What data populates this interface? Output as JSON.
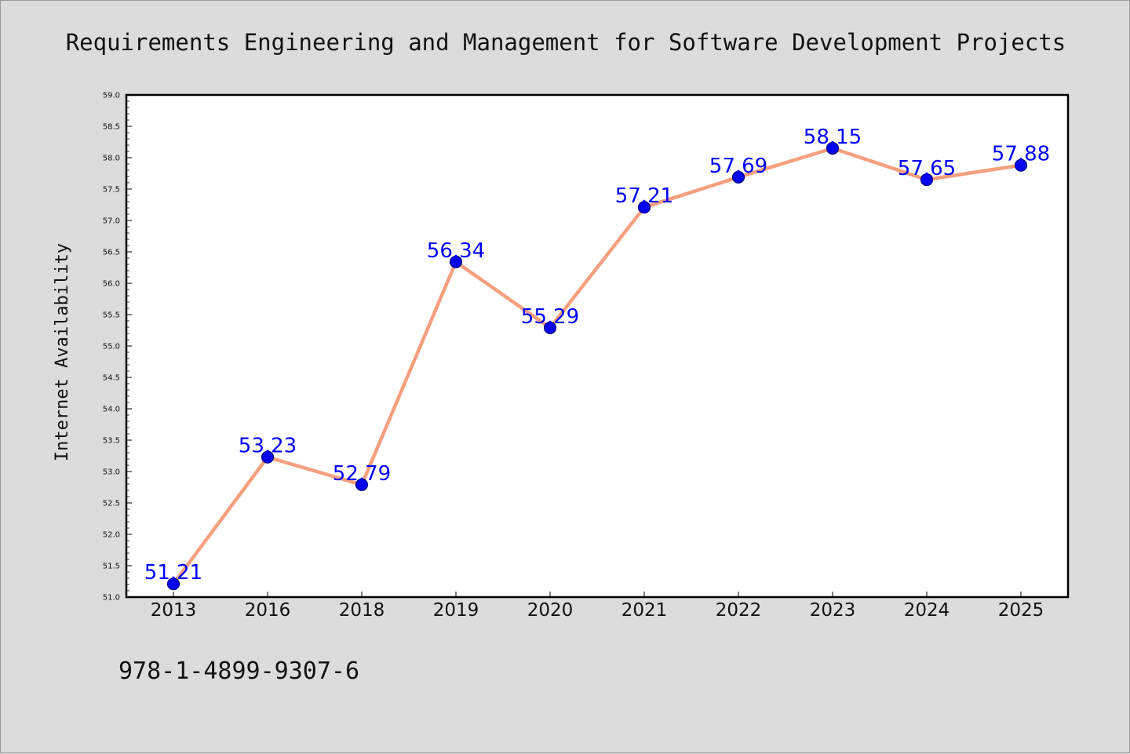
{
  "colors": {
    "background": "#dcdcdc",
    "plot_background": "#ffffff",
    "line": "#f4a07e",
    "marker": "#0000ee",
    "marker_edge": "#00007a",
    "data_label": "#0000ff"
  },
  "footer": {
    "isbn": "978-1-4899-9307-6"
  },
  "chart_data": {
    "type": "line",
    "title": "Requirements Engineering and Management for Software Development Projects",
    "xlabel": "",
    "ylabel": "Internet Availability",
    "categories": [
      "2013",
      "2016",
      "2018",
      "2019",
      "2020",
      "2021",
      "2022",
      "2023",
      "2024",
      "2025"
    ],
    "series": [
      {
        "values": [
          51.21,
          53.23,
          52.79,
          56.34,
          55.29,
          57.21,
          57.69,
          58.15,
          57.65,
          57.88
        ]
      }
    ],
    "data_labels": [
      "51.21",
      "53.23",
      "52.79",
      "56.34",
      "55.29",
      "57.21",
      "57.69",
      "58.15",
      "57.65",
      "57.88"
    ],
    "yticks": [
      "51.0",
      "51.5",
      "52.0",
      "52.5",
      "53.0",
      "53.5",
      "54.0",
      "54.5",
      "55.0",
      "55.5",
      "56.0",
      "56.5",
      "57.0",
      "57.5",
      "58.0",
      "58.5",
      "59.0"
    ],
    "ylim": [
      51.0,
      59.0
    ],
    "grid": false,
    "legend": "none"
  }
}
